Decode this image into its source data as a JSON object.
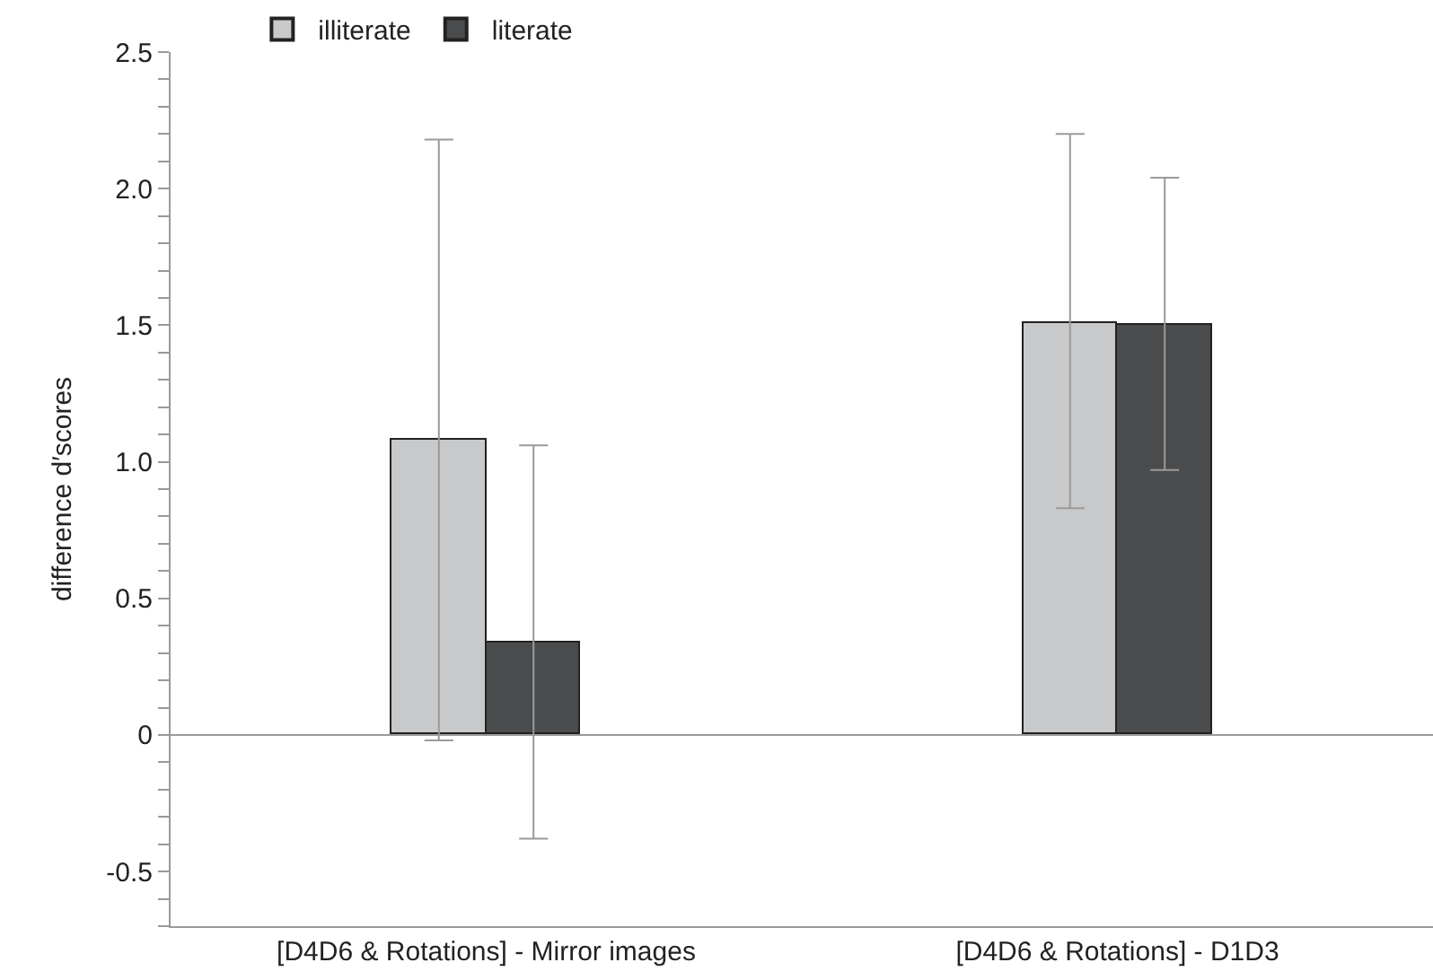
{
  "chart_data": {
    "type": "bar",
    "categories": [
      "[D4D6 & Rotations] - Mirror images",
      "[D4D6 & Rotations] - D1D3"
    ],
    "ylabel": "difference d′scores",
    "series": [
      {
        "name": "illiterate",
        "color": "#c8c9cb",
        "values": [
          1.08,
          1.51
        ],
        "errors": [
          [
            -0.02,
            2.18
          ],
          [
            0.83,
            2.2
          ]
        ]
      },
      {
        "name": "literate",
        "color": "#4a4b4d",
        "values": [
          0.34,
          1.5
        ],
        "errors": [
          [
            -0.38,
            1.06
          ],
          [
            0.97,
            2.04
          ]
        ]
      }
    ],
    "ylim": [
      -0.7,
      2.5
    ],
    "yticks": [
      {
        "value": -0.7,
        "label": null
      },
      {
        "value": -0.6,
        "label": null
      },
      {
        "value": -0.5,
        "label": "-0.5"
      },
      {
        "value": -0.4,
        "label": null
      },
      {
        "value": -0.3,
        "label": null
      },
      {
        "value": -0.2,
        "label": null
      },
      {
        "value": -0.1,
        "label": null
      },
      0,
      {
        "value": 0.1,
        "label": null
      },
      {
        "value": 0.2,
        "label": null
      },
      {
        "value": 0.3,
        "label": null
      },
      {
        "value": 0.4,
        "label": null
      },
      {
        "value": 0.5,
        "label": "0.5"
      },
      {
        "value": 0.6,
        "label": null
      },
      {
        "value": 0.7,
        "label": null
      },
      {
        "value": 0.8,
        "label": null
      },
      {
        "value": 0.9,
        "label": null
      },
      {
        "value": 1.0,
        "label": "1.0"
      },
      {
        "value": 1.1,
        "label": null
      },
      {
        "value": 1.2,
        "label": null
      },
      {
        "value": 1.3,
        "label": null
      },
      {
        "value": 1.4,
        "label": null
      },
      {
        "value": 1.5,
        "label": "1.5"
      },
      {
        "value": 1.6,
        "label": null
      },
      {
        "value": 1.7,
        "label": null
      },
      {
        "value": 1.8,
        "label": null
      },
      {
        "value": 1.9,
        "label": null
      },
      {
        "value": 2.0,
        "label": "2.0"
      },
      {
        "value": 2.1,
        "label": null
      },
      {
        "value": 2.2,
        "label": null
      },
      {
        "value": 2.3,
        "label": null
      },
      {
        "value": 2.4,
        "label": null
      },
      {
        "value": 2.5,
        "label": "2.5"
      }
    ],
    "ref_lines": [
      {
        "axis": "y",
        "value": 0,
        "color": "#9a9a9a"
      }
    ],
    "legend": "top left"
  }
}
